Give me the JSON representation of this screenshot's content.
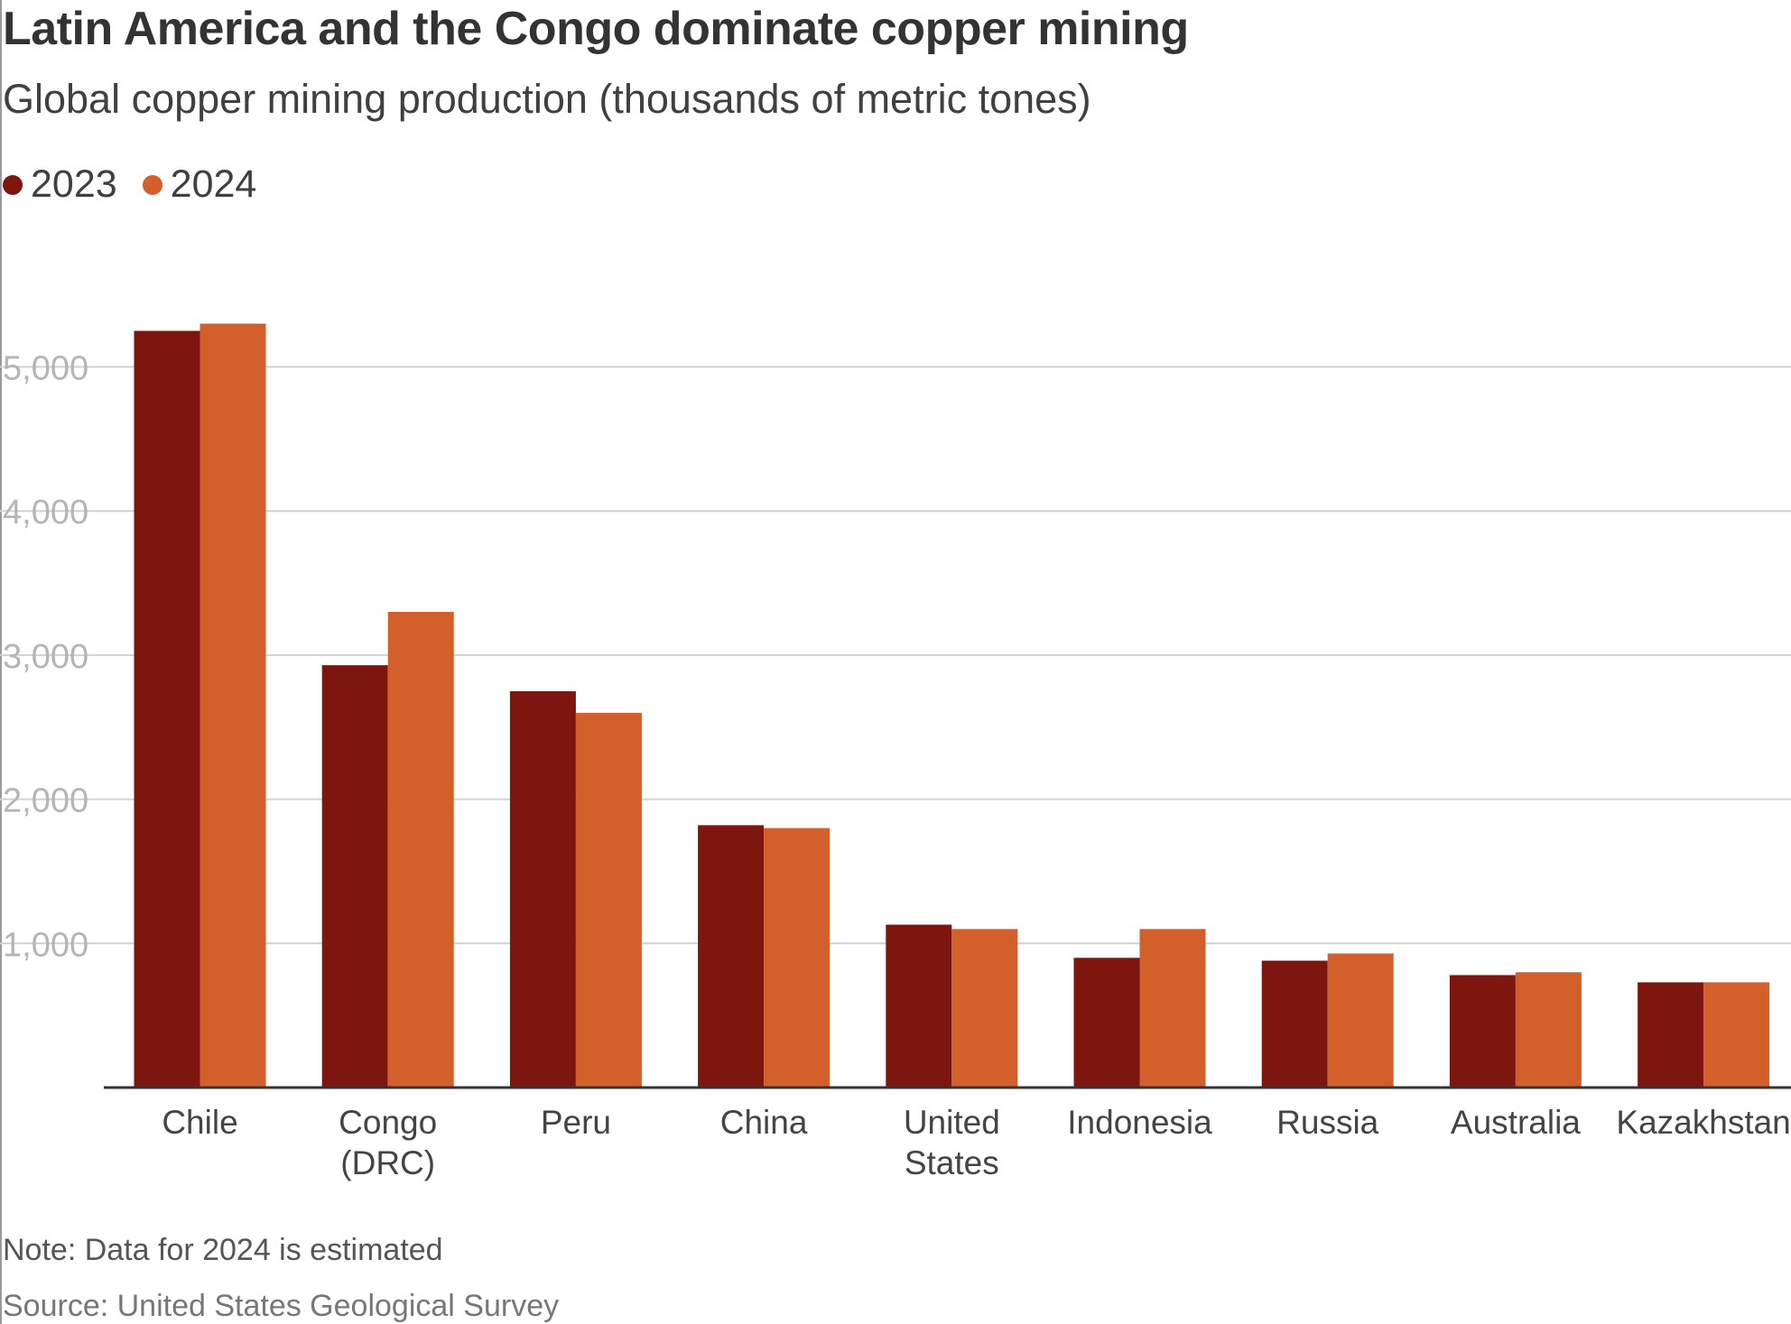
{
  "header": {
    "title": "Latin America and the Congo dominate copper mining",
    "subtitle": "Global copper mining production (thousands of metric tones)"
  },
  "legend": {
    "items": [
      {
        "label": "2023",
        "color": "#7d160e"
      },
      {
        "label": "2024",
        "color": "#d35f2a"
      }
    ]
  },
  "footer": {
    "note": "Note: Data for 2024 is estimated",
    "source": "Source: United States Geological Survey"
  },
  "chart_data": {
    "type": "bar",
    "title": "Latin America and the Congo dominate copper mining",
    "subtitle": "Global copper mining production (thousands of metric tones)",
    "xlabel": "",
    "ylabel": "",
    "ylim": [
      0,
      5500
    ],
    "yticks": [
      1000,
      2000,
      3000,
      4000,
      5000
    ],
    "ytick_labels": [
      "1,000",
      "2,000",
      "3,000",
      "4,000",
      "5,000"
    ],
    "grid": true,
    "legend_position": "top-left",
    "categories": [
      [
        "Chile"
      ],
      [
        "Congo",
        "(DRC)"
      ],
      [
        "Peru"
      ],
      [
        "China"
      ],
      [
        "United",
        "States"
      ],
      [
        "Indonesia"
      ],
      [
        "Russia"
      ],
      [
        "Australia"
      ],
      [
        "Kazakhstan"
      ]
    ],
    "series": [
      {
        "name": "2023",
        "color": "#7d160e",
        "values": [
          5250,
          2930,
          2750,
          1820,
          1130,
          900,
          880,
          780,
          730
        ]
      },
      {
        "name": "2024",
        "color": "#d35f2a",
        "values": [
          5300,
          3300,
          2600,
          1800,
          1100,
          1100,
          930,
          800,
          730
        ]
      }
    ]
  }
}
